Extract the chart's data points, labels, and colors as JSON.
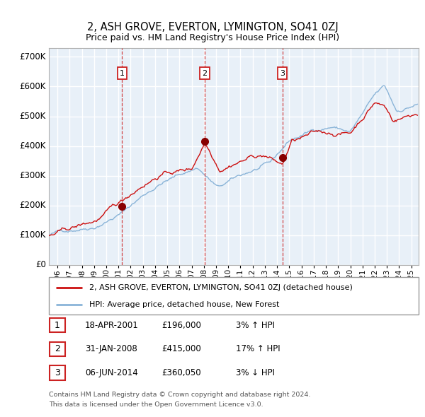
{
  "title": "2, ASH GROVE, EVERTON, LYMINGTON, SO41 0ZJ",
  "subtitle": "Price paid vs. HM Land Registry's House Price Index (HPI)",
  "ylabel_ticks": [
    "£0",
    "£100K",
    "£200K",
    "£300K",
    "£400K",
    "£500K",
    "£600K",
    "£700K"
  ],
  "ytick_values": [
    0,
    100000,
    200000,
    300000,
    400000,
    500000,
    600000,
    700000
  ],
  "ylim": [
    0,
    730000
  ],
  "xlim_start": 1995.3,
  "xlim_end": 2025.6,
  "background_color": "#e8f0f8",
  "plot_bg_color": "#e8f0f8",
  "grid_color": "#ffffff",
  "hpi_color": "#8ab4d8",
  "price_color": "#cc1111",
  "sale_marker_color": "#880000",
  "dashed_line_color": "#cc2222",
  "legend_box_text1": "2, ASH GROVE, EVERTON, LYMINGTON, SO41 0ZJ (detached house)",
  "legend_box_text2": "HPI: Average price, detached house, New Forest",
  "sale_events": [
    {
      "label": "1",
      "date_num": 2001.3,
      "price": 196000,
      "date_str": "18-APR-2001",
      "price_str": "£196,000",
      "pct": "3%",
      "dir": "↑"
    },
    {
      "label": "2",
      "date_num": 2008.08,
      "price": 415000,
      "date_str": "31-JAN-2008",
      "price_str": "£415,000",
      "pct": "17%",
      "dir": "↑"
    },
    {
      "label": "3",
      "date_num": 2014.43,
      "price": 360050,
      "date_str": "06-JUN-2014",
      "price_str": "£360,050",
      "pct": "3%",
      "dir": "↓"
    }
  ],
  "footer_line1": "Contains HM Land Registry data © Crown copyright and database right 2024.",
  "footer_line2": "This data is licensed under the Open Government Licence v3.0."
}
